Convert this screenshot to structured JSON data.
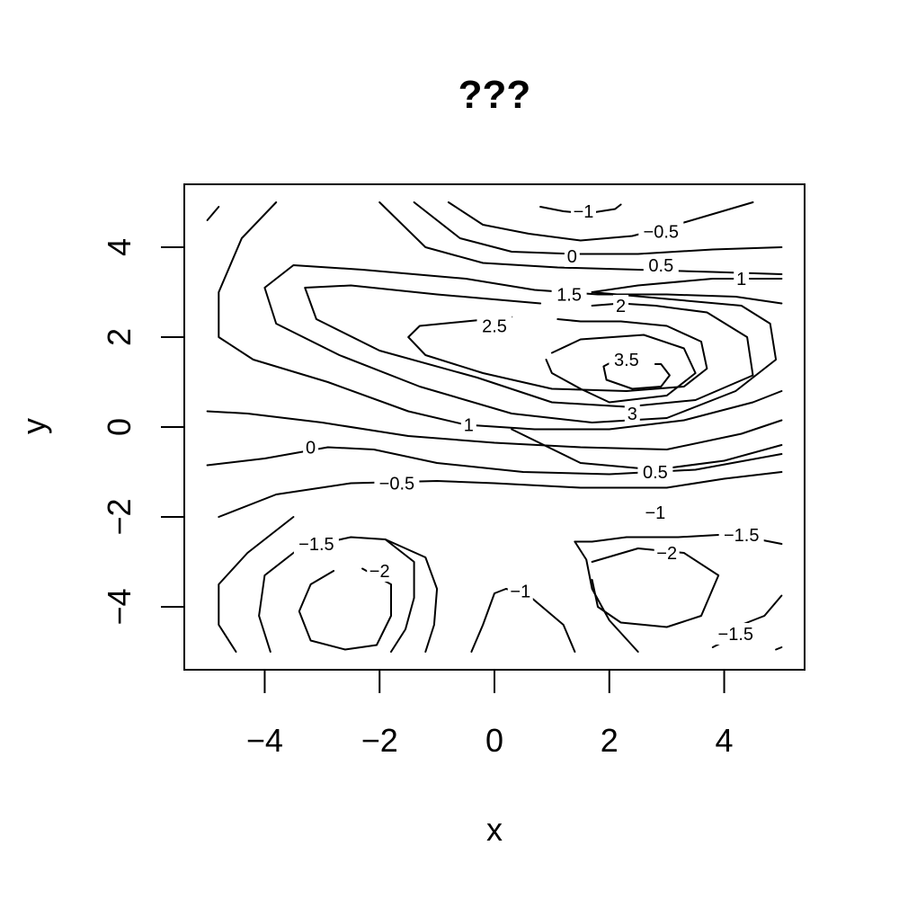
{
  "chart_data": {
    "type": "contour",
    "title": "???",
    "xlabel": "x",
    "ylabel": "y",
    "xlim": [
      -5.4,
      5.4
    ],
    "ylim": [
      -5.4,
      5.4
    ],
    "xticks": [
      -4,
      -2,
      0,
      2,
      4
    ],
    "yticks": [
      -4,
      -2,
      0,
      2,
      4
    ],
    "xtick_labels": [
      "−4",
      "−2",
      "0",
      "2",
      "4"
    ],
    "ytick_labels": [
      "−4",
      "−2",
      "0",
      "2",
      "4"
    ],
    "grid": false,
    "levels": [
      -2,
      -1.5,
      -1,
      -0.5,
      0,
      0.5,
      1,
      1.5,
      2,
      2.5,
      3,
      3.5
    ],
    "contours": [
      {
        "level": "-1",
        "points": [
          [
            0.8,
            4.9
          ],
          [
            1.2,
            4.8
          ],
          [
            1.6,
            4.75
          ],
          [
            2.1,
            4.85
          ],
          [
            2.2,
            4.95
          ]
        ]
      },
      {
        "level": "-0.5",
        "points": [
          [
            -0.8,
            5.0
          ],
          [
            -0.2,
            4.5
          ],
          [
            0.6,
            4.3
          ],
          [
            1.5,
            4.15
          ],
          [
            2.4,
            4.25
          ],
          [
            3.3,
            4.55
          ],
          [
            4.5,
            5.0
          ]
        ]
      },
      {
        "level": "0",
        "points": [
          [
            -1.4,
            5.0
          ],
          [
            -0.6,
            4.2
          ],
          [
            0.3,
            3.9
          ],
          [
            1.4,
            3.85
          ],
          [
            2.5,
            3.85
          ],
          [
            3.8,
            3.95
          ],
          [
            5.0,
            4.0
          ]
        ]
      },
      {
        "level": "0.5",
        "points": [
          [
            -2.0,
            5.0
          ],
          [
            -1.2,
            4.0
          ],
          [
            -0.2,
            3.65
          ],
          [
            1.1,
            3.55
          ],
          [
            2.5,
            3.5
          ],
          [
            3.8,
            3.45
          ],
          [
            5.0,
            3.4
          ]
        ]
      },
      {
        "level": "1",
        "points": [
          [
            -3.8,
            5.0
          ],
          [
            -4.4,
            4.2
          ],
          [
            -4.8,
            3.0
          ],
          [
            -4.8,
            2.0
          ],
          [
            -4.2,
            1.5
          ],
          [
            -2.9,
            1.0
          ],
          [
            -1.5,
            0.35
          ],
          [
            -0.5,
            0.05
          ],
          [
            0.7,
            -0.05
          ],
          [
            2.0,
            -0.05
          ],
          [
            3.3,
            0.15
          ],
          [
            4.5,
            0.55
          ],
          [
            5.0,
            0.8
          ]
        ]
      },
      {
        "level": "1",
        "points": [
          [
            -5.0,
            4.6
          ],
          [
            -4.8,
            4.9
          ]
        ]
      },
      {
        "level": "1",
        "points": [
          [
            1.7,
            3.0
          ],
          [
            2.5,
            3.15
          ],
          [
            3.8,
            3.3
          ],
          [
            5.0,
            3.3
          ]
        ]
      },
      {
        "level": "1.5",
        "points": [
          [
            -0.5,
            3.3
          ],
          [
            0.7,
            3.05
          ],
          [
            1.8,
            2.95
          ],
          [
            3.0,
            2.95
          ],
          [
            4.2,
            2.9
          ],
          [
            5.0,
            2.75
          ]
        ]
      },
      {
        "level": "1.5",
        "points": [
          [
            -0.5,
            3.3
          ],
          [
            -2.3,
            3.5
          ],
          [
            -3.5,
            3.6
          ],
          [
            -4.0,
            3.1
          ],
          [
            -3.8,
            2.3
          ],
          [
            -2.7,
            1.6
          ],
          [
            -1.3,
            0.9
          ],
          [
            0.3,
            0.3
          ],
          [
            1.7,
            0.1
          ],
          [
            3.0,
            0.2
          ],
          [
            4.2,
            0.8
          ],
          [
            4.9,
            1.5
          ],
          [
            4.8,
            2.3
          ],
          [
            4.3,
            2.7
          ],
          [
            3.0,
            2.85
          ],
          [
            1.7,
            3.0
          ]
        ]
      },
      {
        "level": "2",
        "points": [
          [
            0.8,
            2.75
          ],
          [
            -1.0,
            2.95
          ],
          [
            -2.5,
            3.15
          ],
          [
            -3.3,
            3.1
          ],
          [
            -3.1,
            2.4
          ],
          [
            -2.0,
            1.7
          ],
          [
            -0.3,
            1.1
          ],
          [
            1.0,
            0.55
          ],
          [
            2.3,
            0.45
          ],
          [
            3.5,
            0.6
          ],
          [
            4.5,
            1.15
          ],
          [
            4.4,
            2.0
          ],
          [
            3.7,
            2.55
          ],
          [
            2.8,
            2.7
          ],
          [
            2.2,
            2.75
          ],
          [
            1.7,
            2.7
          ]
        ]
      },
      {
        "level": "2.5",
        "points": [
          [
            0.3,
            2.45
          ],
          [
            -0.5,
            2.35
          ],
          [
            -1.3,
            2.25
          ],
          [
            -1.5,
            2.0
          ],
          [
            -1.2,
            1.6
          ],
          [
            -0.2,
            1.2
          ],
          [
            1.0,
            0.85
          ],
          [
            2.3,
            0.8
          ],
          [
            3.3,
            0.9
          ],
          [
            3.7,
            1.3
          ],
          [
            3.6,
            1.9
          ],
          [
            3.0,
            2.25
          ],
          [
            2.2,
            2.35
          ],
          [
            1.5,
            2.35
          ],
          [
            1.1,
            2.4
          ]
        ]
      },
      {
        "level": "3",
        "points": [
          [
            1.0,
            1.65
          ],
          [
            1.5,
            1.95
          ],
          [
            2.6,
            2.05
          ],
          [
            3.3,
            1.75
          ],
          [
            3.5,
            1.2
          ],
          [
            3.0,
            0.7
          ],
          [
            2.0,
            0.55
          ],
          [
            1.5,
            0.85
          ],
          [
            1.0,
            1.2
          ],
          [
            0.9,
            1.5
          ]
        ]
      },
      {
        "level": "3.5",
        "points": [
          [
            2.2,
            1.55
          ],
          [
            1.9,
            1.35
          ],
          [
            1.95,
            1.05
          ],
          [
            2.4,
            0.85
          ],
          [
            2.9,
            0.9
          ],
          [
            3.05,
            1.15
          ],
          [
            2.9,
            1.4
          ],
          [
            2.8,
            1.4
          ]
        ]
      },
      {
        "level": "0",
        "points": [
          [
            -5.0,
            0.35
          ],
          [
            -4.3,
            0.3
          ],
          [
            -3.0,
            0.1
          ],
          [
            -1.5,
            -0.2
          ],
          [
            0.0,
            -0.35
          ],
          [
            1.5,
            -0.45
          ],
          [
            3.0,
            -0.5
          ],
          [
            4.3,
            -0.15
          ],
          [
            5.0,
            0.15
          ]
        ]
      },
      {
        "level": "-0.5",
        "points": [
          [
            -5.0,
            -0.85
          ],
          [
            -4.0,
            -0.7
          ],
          [
            -2.9,
            -0.45
          ],
          [
            -2.1,
            -0.5
          ],
          [
            -1.0,
            -0.8
          ],
          [
            0.5,
            -1.0
          ],
          [
            2.0,
            -1.05
          ],
          [
            3.5,
            -0.95
          ],
          [
            5.0,
            -0.6
          ]
        ]
      },
      {
        "level": "0.5",
        "points": [
          [
            0.3,
            -0.05
          ],
          [
            1.5,
            -0.8
          ],
          [
            2.8,
            -0.95
          ],
          [
            4.0,
            -0.75
          ],
          [
            5.0,
            -0.4
          ]
        ]
      },
      {
        "level": "0.5",
        "points": [
          [
            -4.8,
            -2.0
          ],
          [
            -3.8,
            -1.5
          ],
          [
            -2.5,
            -1.25
          ],
          [
            -1.0,
            -1.2
          ],
          [
            0.0,
            -1.25
          ],
          [
            1.5,
            -1.35
          ],
          [
            3.0,
            -1.35
          ],
          [
            4.0,
            -1.15
          ],
          [
            5.0,
            -1.0
          ]
        ]
      },
      {
        "level": "-1",
        "points": [
          [
            -3.5,
            -2.0
          ],
          [
            -4.3,
            -2.8
          ],
          [
            -4.8,
            -3.5
          ],
          [
            -4.8,
            -4.4
          ],
          [
            -4.5,
            -5.0
          ]
        ]
      },
      {
        "level": "-1",
        "points": [
          [
            -1.9,
            -2.5
          ],
          [
            -1.2,
            -2.9
          ],
          [
            -1.0,
            -3.6
          ],
          [
            -1.05,
            -4.4
          ],
          [
            -1.2,
            -5.0
          ]
        ]
      },
      {
        "level": "-1.5",
        "points": [
          [
            -1.9,
            -2.5
          ],
          [
            -2.5,
            -2.45
          ],
          [
            -3.4,
            -2.7
          ],
          [
            -4.0,
            -3.3
          ],
          [
            -4.1,
            -4.2
          ],
          [
            -3.9,
            -5.0
          ]
        ]
      },
      {
        "level": "-1.5",
        "points": [
          [
            -1.9,
            -2.5
          ],
          [
            -1.4,
            -3.0
          ],
          [
            -1.4,
            -3.8
          ],
          [
            -1.55,
            -4.5
          ],
          [
            -1.8,
            -5.0
          ]
        ]
      },
      {
        "level": "-2",
        "points": [
          [
            -2.3,
            -3.15
          ],
          [
            -1.8,
            -3.5
          ],
          [
            -1.8,
            -4.2
          ],
          [
            -2.05,
            -4.85
          ],
          [
            -2.6,
            -4.95
          ],
          [
            -3.2,
            -4.75
          ],
          [
            -3.4,
            -4.1
          ],
          [
            -3.2,
            -3.5
          ],
          [
            -2.8,
            -3.2
          ]
        ]
      },
      {
        "level": "-1",
        "points": [
          [
            -0.4,
            -5.0
          ],
          [
            -0.2,
            -4.4
          ],
          [
            0.0,
            -3.7
          ],
          [
            0.2,
            -3.6
          ],
          [
            0.35,
            -3.65
          ]
        ]
      },
      {
        "level": "-1",
        "points": [
          [
            0.6,
            -3.75
          ],
          [
            1.2,
            -4.4
          ],
          [
            1.4,
            -5.0
          ]
        ]
      },
      {
        "level": "-1",
        "points": [
          [
            1.4,
            -2.55
          ],
          [
            1.6,
            -2.95
          ],
          [
            1.7,
            -3.6
          ],
          [
            2.0,
            -4.3
          ],
          [
            2.5,
            -5.0
          ]
        ]
      },
      {
        "level": "-1.5",
        "points": [
          [
            3.9,
            -2.4
          ],
          [
            3.2,
            -2.45
          ],
          [
            2.3,
            -2.45
          ],
          [
            1.7,
            -2.55
          ],
          [
            1.4,
            -2.55
          ]
        ]
      },
      {
        "level": "-1.5",
        "points": [
          [
            4.6,
            -2.5
          ],
          [
            5.0,
            -2.6
          ]
        ]
      },
      {
        "level": "-2",
        "points": [
          [
            1.7,
            -3.0
          ],
          [
            2.5,
            -2.7
          ],
          [
            3.3,
            -2.8
          ],
          [
            3.9,
            -3.3
          ],
          [
            3.6,
            -4.2
          ],
          [
            3.0,
            -4.45
          ],
          [
            2.2,
            -4.35
          ],
          [
            1.8,
            -4.0
          ],
          [
            1.7,
            -3.4
          ]
        ]
      },
      {
        "level": "-1.5",
        "points": [
          [
            5.0,
            -3.75
          ],
          [
            4.7,
            -4.2
          ],
          [
            4.3,
            -4.4
          ]
        ]
      },
      {
        "level": "-1.5",
        "points": [
          [
            3.95,
            -4.8
          ],
          [
            3.8,
            -4.9
          ]
        ]
      },
      {
        "level": "-1.5",
        "points": [
          [
            4.9,
            -4.95
          ],
          [
            5.0,
            -4.9
          ]
        ]
      }
    ],
    "contour_labels": [
      {
        "text": "-1",
        "x": 1.55,
        "y": 4.8
      },
      {
        "text": "-0.5",
        "x": 2.9,
        "y": 4.35
      },
      {
        "text": "0",
        "x": 1.35,
        "y": 3.8
      },
      {
        "text": "0.5",
        "x": 2.9,
        "y": 3.6
      },
      {
        "text": "1",
        "x": 4.3,
        "y": 3.3
      },
      {
        "text": "1.5",
        "x": 1.3,
        "y": 2.95
      },
      {
        "text": "2",
        "x": 2.2,
        "y": 2.7
      },
      {
        "text": "2.5",
        "x": 0.0,
        "y": 2.25
      },
      {
        "text": "3.5",
        "x": 2.3,
        "y": 1.5
      },
      {
        "text": "3",
        "x": 2.4,
        "y": 0.3
      },
      {
        "text": "1",
        "x": -0.45,
        "y": 0.05
      },
      {
        "text": "0",
        "x": -3.2,
        "y": -0.45
      },
      {
        "text": "-0.5",
        "x": -1.7,
        "y": -1.25
      },
      {
        "text": "0.5",
        "x": 2.8,
        "y": -1.0
      },
      {
        "text": "-1",
        "x": 2.8,
        "y": -1.9
      },
      {
        "text": "-1.5",
        "x": 4.3,
        "y": -2.4
      },
      {
        "text": "-1.5",
        "x": -3.1,
        "y": -2.6
      },
      {
        "text": "-2",
        "x": -2.0,
        "y": -3.2
      },
      {
        "text": "-2",
        "x": 3.0,
        "y": -2.8
      },
      {
        "text": "-1",
        "x": 0.45,
        "y": -3.65
      },
      {
        "text": "-1.5",
        "x": 4.2,
        "y": -4.6
      }
    ]
  }
}
